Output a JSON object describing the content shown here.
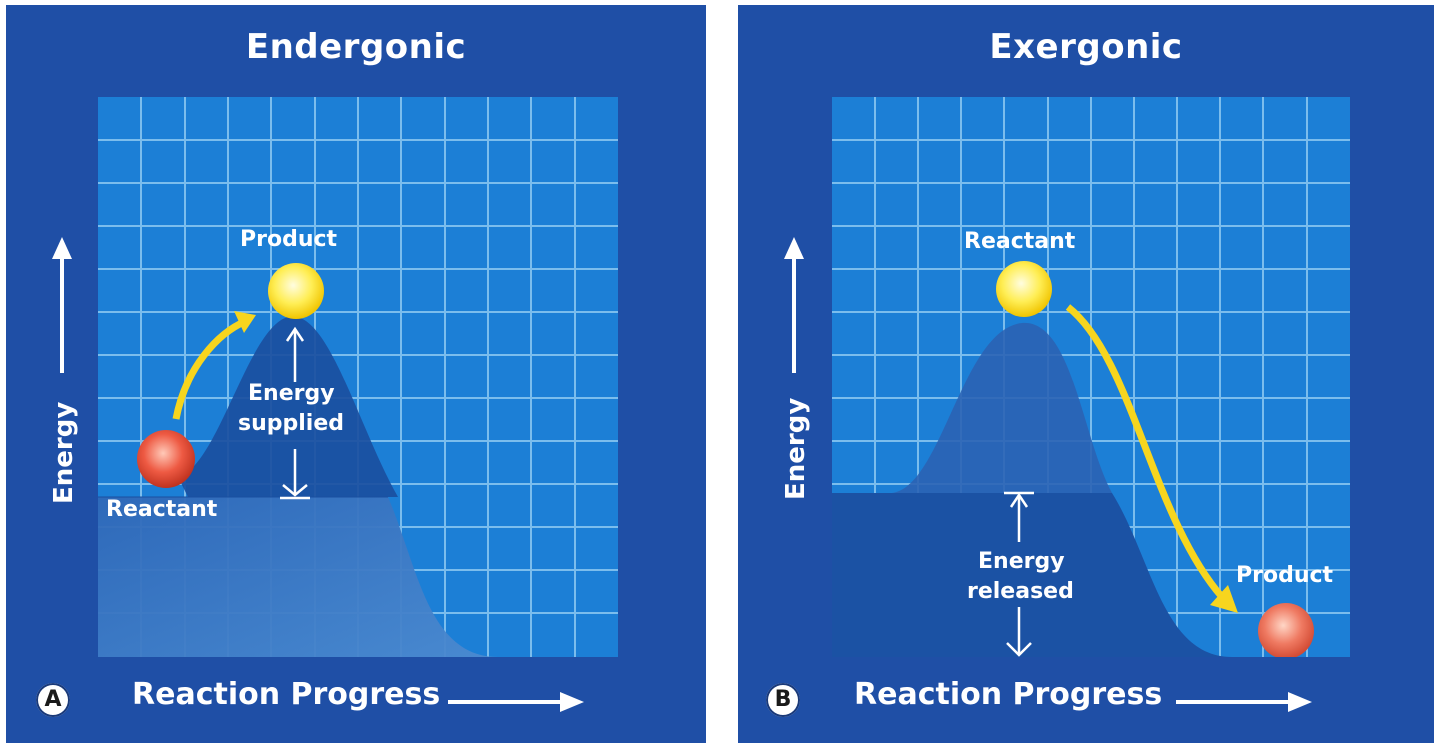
{
  "panel_a": {
    "title": "Endergonic",
    "ylabel": "Energy",
    "xlabel": "Reaction Progress",
    "badge": "A",
    "product_label": "Product",
    "reactant_label": "Reactant",
    "energy_text_line1": "Energy",
    "energy_text_line2": "supplied"
  },
  "panel_b": {
    "title": "Exergonic",
    "ylabel": "Energy",
    "xlabel": "Reaction Progress",
    "badge": "B",
    "reactant_label": "Reactant",
    "product_label": "Product",
    "energy_text_line1": "Energy",
    "energy_text_line2": "released"
  },
  "colors": {
    "panel_bg": "#1f4fa6",
    "grid_bg": "#1c7fd6",
    "grid_line": "#8cc8f2",
    "curve_fill": "#1a55a8",
    "yellow_ball": "#ffe84a",
    "red_ball": "#e8533d",
    "arrow_yellow": "#f7d51e"
  }
}
